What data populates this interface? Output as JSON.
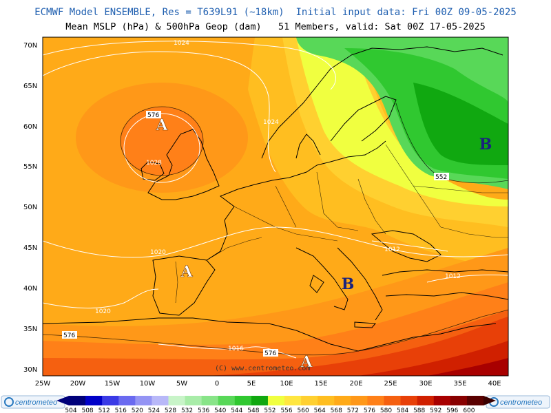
{
  "header": {
    "line1": "ECMWF Model ENSEMBLE, Res = T639L91 (~18km)  Initial input data: Fri 00Z 09-05-2025",
    "line2": "Mean MSLP (hPa) & 500hPa Geop (dam)   51 Members, valid: Sat 00Z 17-05-2025"
  },
  "axes": {
    "lat_labels": [
      "70N",
      "65N",
      "60N",
      "55N",
      "50N",
      "45N",
      "40N",
      "35N",
      "30N"
    ],
    "lon_labels": [
      "25W",
      "20W",
      "15W",
      "10W",
      "5W",
      "0",
      "5E",
      "10E",
      "15E",
      "20E",
      "25E",
      "30E",
      "35E",
      "40E"
    ]
  },
  "centers": [
    {
      "letter": "A",
      "color": "#ffffff"
    },
    {
      "letter": "A",
      "color": "#ffffff"
    },
    {
      "letter": "A",
      "color": "#ffffff"
    },
    {
      "letter": "B",
      "color": "#1a237e"
    },
    {
      "letter": "B",
      "color": "#1a237e"
    }
  ],
  "isobar_labels": [
    "1024",
    "1024",
    "1028",
    "1020",
    "1020",
    "1016",
    "1012",
    "1012"
  ],
  "geop_labels": [
    "576",
    "576",
    "576",
    "552"
  ],
  "copyright": "(C) www.centrometeo.com",
  "colorbar": {
    "values": [
      "504",
      "508",
      "512",
      "516",
      "520",
      "524",
      "528",
      "532",
      "536",
      "540",
      "544",
      "548",
      "552",
      "556",
      "560",
      "564",
      "568",
      "572",
      "576",
      "580",
      "584",
      "588",
      "592",
      "596",
      "600"
    ],
    "colors": [
      "#00007a",
      "#0000c8",
      "#3a3ae6",
      "#6a6af0",
      "#9494f4",
      "#b8b8f8",
      "#c8f4c8",
      "#a8eca8",
      "#88e488",
      "#58d858",
      "#30c830",
      "#10a810",
      "#f0ff40",
      "#ffe640",
      "#ffd030",
      "#ffbe20",
      "#ffaa18",
      "#ff9818",
      "#ff8018",
      "#f56010",
      "#e84008",
      "#d02000",
      "#a80000",
      "#880000",
      "#5a0000"
    ],
    "logo_text": "centrometeo"
  }
}
